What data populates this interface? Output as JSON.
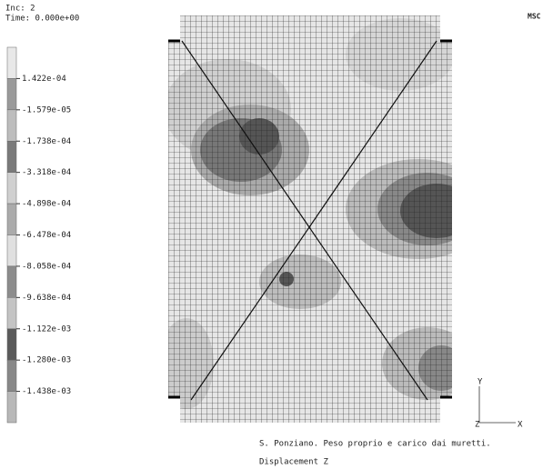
{
  "header": {
    "increment": "Inc:  2",
    "time": "Time:  0.000e+00"
  },
  "legend": {
    "labels": [
      "1.422e-04",
      "-1.579e-05",
      "-1.738e-04",
      "-3.318e-04",
      "-4.898e-04",
      "-6.478e-04",
      "-8.058e-04",
      "-9.638e-04",
      "-1.122e-03",
      "-1.280e-03",
      "-1.438e-03"
    ]
  },
  "logo": "MSC",
  "caption": {
    "line1": "S. Ponziano. Peso proprio e carico dai muretti.",
    "line2": "Displacement Z"
  },
  "axes": {
    "y": "Y",
    "z": "Z",
    "x": "X"
  }
}
